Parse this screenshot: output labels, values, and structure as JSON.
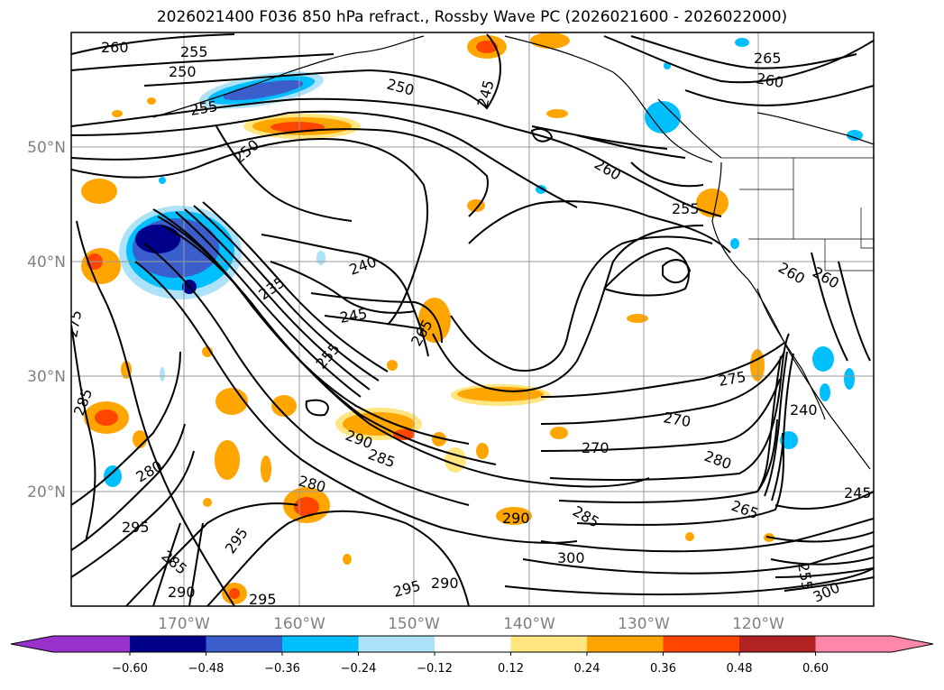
{
  "title": "2026021400 F036 850 hPa refract., Rossby Wave PC (2026021600 - 2026022000)",
  "lat_labels": [
    "50°N",
    "40°N",
    "30°N",
    "20°N"
  ],
  "lon_labels": [
    "170°W",
    "160°W",
    "150°W",
    "140°W",
    "130°W",
    "120°W"
  ],
  "contour_labels": [
    "260",
    "255",
    "250",
    "250",
    "255",
    "245",
    "265",
    "260",
    "250",
    "260",
    "255",
    "240",
    "235",
    "245",
    "255",
    "265",
    "260",
    "260",
    "275",
    "270",
    "240",
    "270",
    "280",
    "280",
    "285",
    "280",
    "290",
    "295",
    "285",
    "295",
    "290",
    "295",
    "290",
    "295",
    "300",
    "285",
    "265",
    "255",
    "245",
    "300",
    "275",
    "285",
    "290"
  ],
  "colorbar": {
    "ticks": [
      "−0.60",
      "−0.48",
      "−0.36",
      "−0.24",
      "−0.12",
      "0.12",
      "0.24",
      "0.36",
      "0.48",
      "0.60"
    ],
    "colors": [
      "#9932cc",
      "#00008b",
      "#3a5fcd",
      "#00bfff",
      "#aee2f8",
      "#ffffff",
      "#ffe680",
      "#ffa500",
      "#ff4500",
      "#b22222",
      "#ff88aa"
    ]
  },
  "map_colors": {
    "orange": "#ffa500",
    "yellow": "#ffe680",
    "red": "#ff4500",
    "darkblue": "#00008b",
    "blue": "#3a5fcd",
    "cyan": "#00bfff",
    "lightblue": "#aee2f8"
  }
}
